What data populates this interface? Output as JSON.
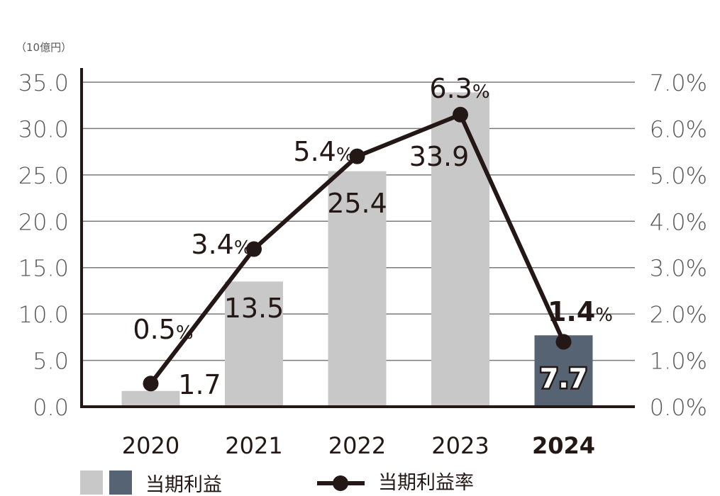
{
  "chart_data": {
    "type": "bar",
    "unit_label": "（10億円）",
    "categories": [
      "2020",
      "2021",
      "2022",
      "2023",
      "2024"
    ],
    "highlight_category": "2024",
    "series": [
      {
        "name": "当期利益",
        "type": "bar",
        "axis": "left",
        "values": [
          1.7,
          13.5,
          25.4,
          33.9,
          7.7
        ],
        "value_labels": [
          "1.7",
          "13.5",
          "25.4",
          "33.9",
          "7.7"
        ]
      },
      {
        "name": "当期利益率",
        "type": "line",
        "axis": "right",
        "values": [
          0.5,
          3.4,
          5.4,
          6.3,
          1.4
        ],
        "value_labels": [
          "0.5",
          "3.4",
          "5.4",
          "6.3",
          "1.4"
        ],
        "value_suffix": "%"
      }
    ],
    "y_left": {
      "min": 0,
      "max": 35,
      "ticks": [
        "0.0",
        "5.0",
        "10.0",
        "15.0",
        "20.0",
        "25.0",
        "30.0",
        "35.0"
      ]
    },
    "y_right": {
      "min": 0,
      "max": 7,
      "ticks": [
        "0.0%",
        "1.0%",
        "2.0%",
        "3.0%",
        "4.0%",
        "5.0%",
        "6.0%",
        "7.0%"
      ]
    },
    "grid": true,
    "legend_position": "bottom-left",
    "colors": {
      "bar": "#c8c8c8",
      "bar_highlight": "#566372",
      "line": "#231815",
      "grid": "#7a7a7a",
      "axis": "#231815",
      "tick_text": "#595959",
      "label_text": "#231815"
    }
  }
}
